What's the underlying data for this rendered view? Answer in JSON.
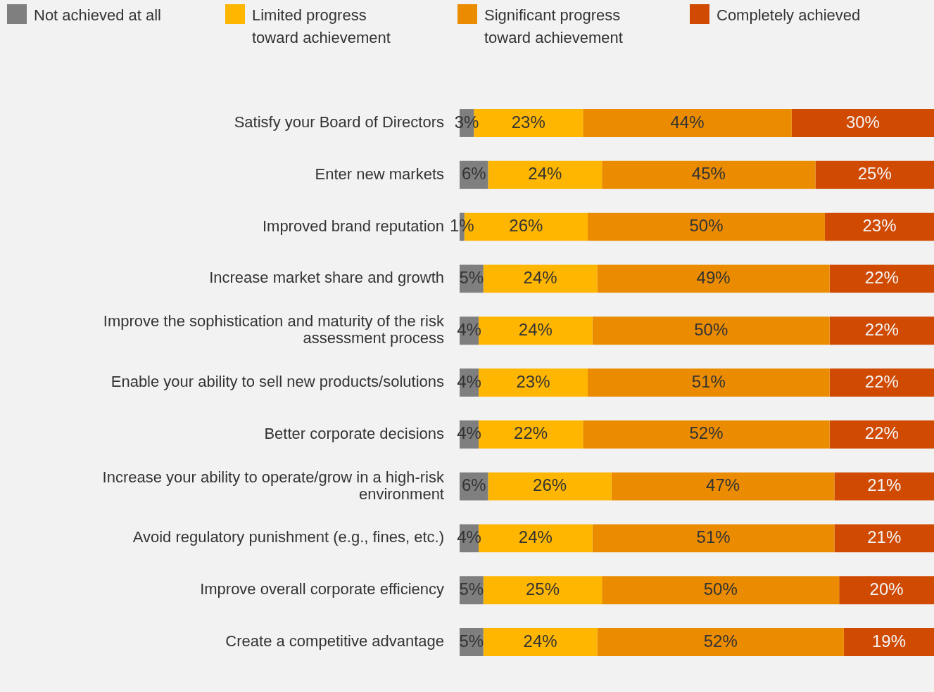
{
  "chart_data": {
    "type": "bar",
    "orientation": "horizontal",
    "stacked": true,
    "legend": "top left",
    "tick_labels": "y",
    "xlim": [
      0,
      100
    ],
    "categories": [
      "Satisfy your Board of Directors",
      "Enter new markets",
      "Improved brand reputation",
      "Increase market share and growth",
      "Improve the sophistication and maturity of the risk assessment process",
      "Enable your ability to sell new products/solutions",
      "Better corporate decisions",
      "Increase your ability to operate/grow in a high-risk environment",
      "Avoid regulatory punishment (e.g., fines, etc.)",
      "Improve overall corporate efficiency",
      "Create a competitive advantage"
    ],
    "series": [
      {
        "name": "Not achieved at all",
        "color": "#7f7f7f",
        "values": [
          3,
          6,
          1,
          5,
          4,
          4,
          4,
          6,
          4,
          5,
          5
        ],
        "value_labels": [
          "3%",
          "6%",
          "1%",
          "5%",
          "4%",
          "4%",
          "4%",
          "6%",
          "4%",
          "5%",
          "5%"
        ]
      },
      {
        "name": "Limited progress toward achievement",
        "color": "#ffb600",
        "values": [
          23,
          24,
          26,
          24,
          24,
          23,
          22,
          26,
          24,
          25,
          24
        ],
        "value_labels": [
          "23%",
          "24%",
          "26%",
          "24%",
          "24%",
          "23%",
          "22%",
          "26%",
          "24%",
          "25%",
          "24%"
        ]
      },
      {
        "name": "Significant progress toward achievement",
        "color": "#eb8c00",
        "values": [
          44,
          45,
          50,
          49,
          50,
          51,
          52,
          47,
          51,
          50,
          52
        ],
        "value_labels": [
          "44%",
          "45%",
          "50%",
          "49%",
          "50%",
          "51%",
          "52%",
          "47%",
          "51%",
          "50%",
          "52%"
        ]
      },
      {
        "name": "Completely achieved",
        "color": "#d04a02",
        "values": [
          30,
          25,
          23,
          22,
          22,
          22,
          22,
          21,
          21,
          20,
          19
        ],
        "value_labels": [
          "30%",
          "25%",
          "23%",
          "22%",
          "22%",
          "22%",
          "22%",
          "21%",
          "21%",
          "20%",
          "19%"
        ]
      }
    ]
  }
}
